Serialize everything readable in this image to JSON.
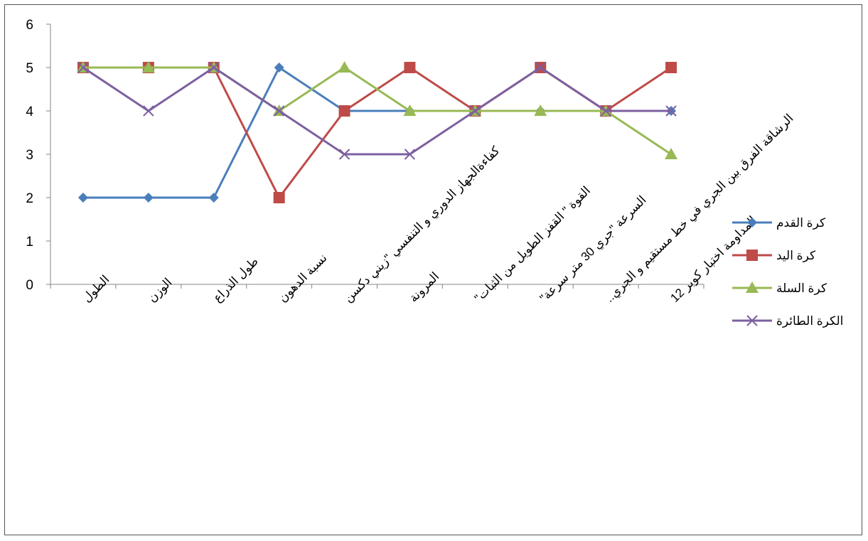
{
  "chart_data": {
    "type": "line",
    "title": "",
    "xlabel": "",
    "ylabel": "",
    "ylim": [
      0,
      6
    ],
    "yticks": [
      0,
      1,
      2,
      3,
      4,
      5,
      6
    ],
    "grid": false,
    "legend_position": "right",
    "categories": [
      "الطول",
      "الوزن",
      "طول الذراع",
      "نسبة الدهون",
      "كفاءةالجهاز الدوري و التنفسي \"زيني دكسن",
      "المرونة",
      "القوة \" القفز الطويل من الثبات\"",
      "السرعة \"جري 30 متر سرعة\"",
      "الرشاقة الفرق بين الجري في خط مستقيم و الجري..",
      "المداومة اختبار كوبر 12"
    ],
    "series": [
      {
        "name": "كرة القدم",
        "color": "#4a7ebb",
        "marker": "diamond",
        "values": [
          2,
          2,
          2,
          5,
          4,
          4,
          4,
          4,
          4,
          4
        ]
      },
      {
        "name": "كرة اليد",
        "color": "#be4b48",
        "marker": "square",
        "values": [
          5,
          5,
          5,
          2,
          4,
          5,
          4,
          5,
          4,
          5
        ]
      },
      {
        "name": "كرة السلة",
        "color": "#98b954",
        "marker": "triangle",
        "values": [
          5,
          5,
          5,
          4,
          5,
          4,
          4,
          4,
          4,
          3
        ]
      },
      {
        "name": "الكرة الطائرة",
        "color": "#7d60a0",
        "marker": "x",
        "values": [
          5,
          4,
          5,
          4,
          3,
          3,
          4,
          5,
          4,
          4
        ]
      }
    ]
  }
}
